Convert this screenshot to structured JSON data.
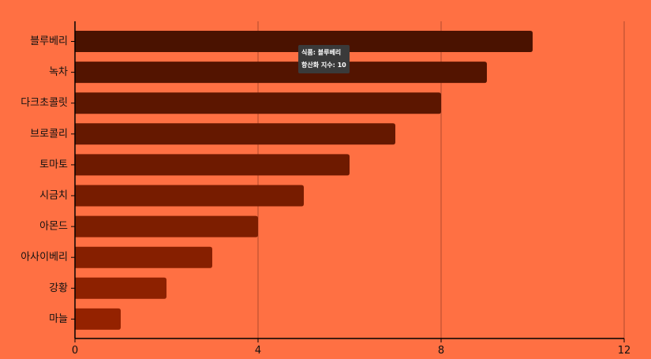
{
  "chart_data": {
    "type": "bar",
    "orientation": "horizontal",
    "categories": [
      "블루베리",
      "녹차",
      "다크초콜릿",
      "브로콜리",
      "토마토",
      "시금치",
      "아몬드",
      "아사이베리",
      "강황",
      "마늘"
    ],
    "values": [
      10,
      9,
      8,
      7,
      6,
      5,
      4,
      3,
      2,
      1
    ],
    "xlim": [
      0,
      12
    ],
    "x_ticks": [
      0,
      4,
      8,
      12
    ],
    "x_tick_labels": [
      "0",
      "4",
      "8",
      "12"
    ],
    "grid": "vertical",
    "bar_colors": [
      "#4a1200",
      "#531400",
      "#5c1600",
      "#651800",
      "#6e1a00",
      "#771c00",
      "#7d1e00",
      "#861f00",
      "#8d2100",
      "#942200"
    ],
    "background": "#ff7043",
    "tooltip": {
      "category_key": "식품",
      "category_value": "블루베리",
      "value_key": "항산화 지수",
      "value_value": "10"
    }
  }
}
